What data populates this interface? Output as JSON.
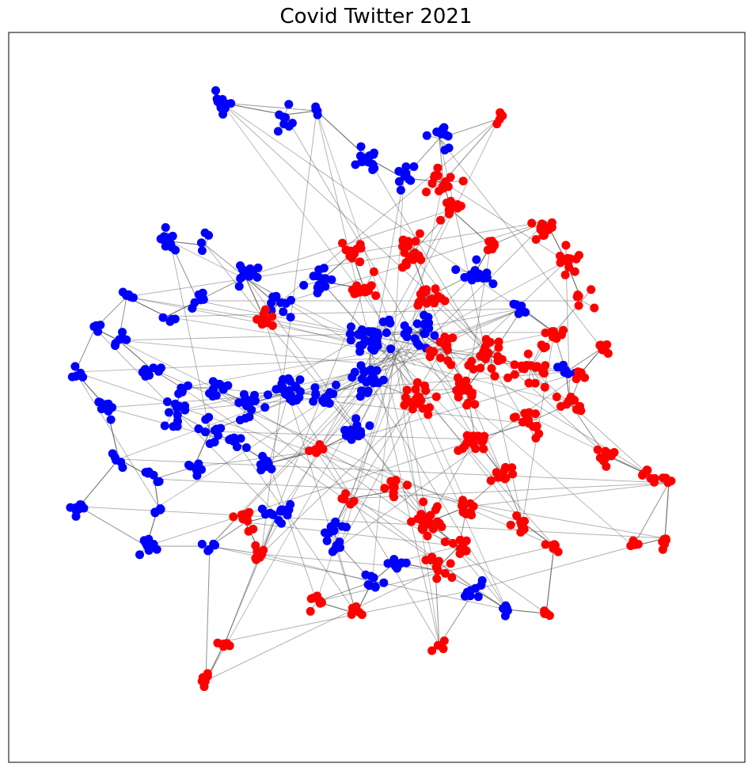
{
  "title": "Covid Twitter 2021",
  "colors": {
    "group_a": "#0000ff",
    "group_b": "#ff0000",
    "edge": "#555555",
    "frame": "#000000",
    "background": "#ffffff"
  },
  "graph": {
    "layout": "force-directed",
    "groups": [
      "group_a",
      "group_b"
    ],
    "axis_ticks": false
  }
}
